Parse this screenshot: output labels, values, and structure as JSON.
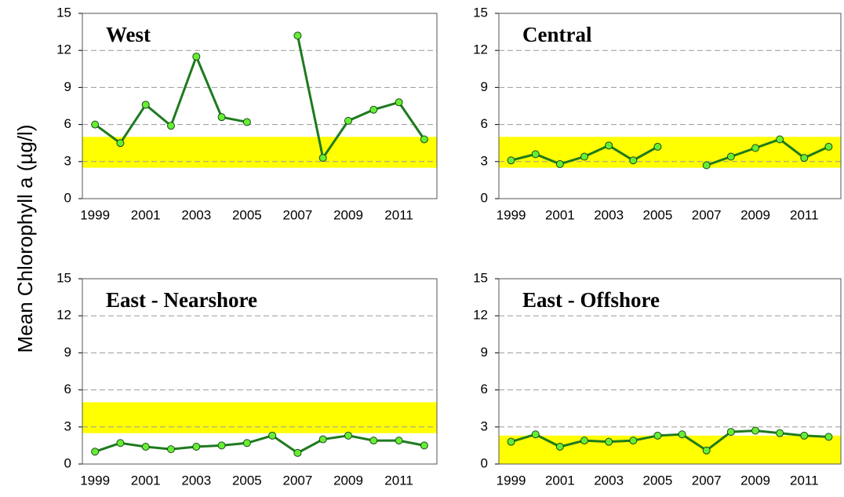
{
  "ylabel": "Mean Chlorophyll a (µg/l)",
  "chart_data": [
    {
      "type": "line",
      "title": "West",
      "categories": [
        "1999",
        null,
        "2001",
        null,
        "2003",
        null,
        "2005",
        null,
        "2007",
        null,
        "2009",
        null,
        "2011",
        null
      ],
      "values": [
        6.0,
        4.5,
        7.6,
        5.9,
        11.5,
        6.6,
        6.2,
        null,
        13.2,
        3.3,
        6.3,
        7.2,
        7.8,
        4.8
      ],
      "color": "#1e7a1e",
      "marker_color": "#66ee33",
      "band": [
        2.5,
        5
      ],
      "band_color": "#ffff00",
      "ylim": [
        0,
        15
      ],
      "yticks": [
        0,
        3,
        6,
        9,
        12,
        15
      ],
      "grid": true
    },
    {
      "type": "line",
      "title": "Central",
      "categories": [
        "1999",
        null,
        "2001",
        null,
        "2003",
        null,
        "2005",
        null,
        "2007",
        null,
        "2009",
        null,
        "2011",
        null
      ],
      "values": [
        3.1,
        3.6,
        2.8,
        3.4,
        4.3,
        3.1,
        4.2,
        null,
        2.7,
        3.4,
        4.1,
        4.8,
        3.3,
        4.2
      ],
      "color": "#1e7a1e",
      "marker_color": "#66ee33",
      "band": [
        2.5,
        5
      ],
      "band_color": "#ffff00",
      "ylim": [
        0,
        15
      ],
      "yticks": [
        0,
        3,
        6,
        9,
        12,
        15
      ],
      "grid": true
    },
    {
      "type": "line",
      "title": "East - Nearshore",
      "categories": [
        "1999",
        null,
        "2001",
        null,
        "2003",
        null,
        "2005",
        null,
        "2007",
        null,
        "2009",
        null,
        "2011",
        null
      ],
      "values": [
        1.0,
        1.7,
        1.4,
        1.2,
        1.4,
        1.5,
        1.7,
        2.3,
        0.9,
        2.0,
        2.3,
        1.9,
        1.9,
        1.5
      ],
      "color": "#1e7a1e",
      "marker_color": "#66ee33",
      "band": [
        2.5,
        5
      ],
      "band_color": "#ffff00",
      "ylim": [
        0,
        15
      ],
      "yticks": [
        0,
        3,
        6,
        9,
        12,
        15
      ],
      "grid": true
    },
    {
      "type": "line",
      "title": "East - Offshore",
      "categories": [
        "1999",
        null,
        "2001",
        null,
        "2003",
        null,
        "2005",
        null,
        "2007",
        null,
        "2009",
        null,
        "2011",
        null
      ],
      "values": [
        1.8,
        2.4,
        1.4,
        1.9,
        1.8,
        1.9,
        2.3,
        2.4,
        1.1,
        2.6,
        2.7,
        2.5,
        2.3,
        2.2
      ],
      "color": "#1e7a1e",
      "marker_color": "#66ee33",
      "band": [
        0,
        2.3
      ],
      "band_color": "#ffff00",
      "ylim": [
        0,
        15
      ],
      "yticks": [
        0,
        3,
        6,
        9,
        12,
        15
      ],
      "grid": true
    }
  ]
}
